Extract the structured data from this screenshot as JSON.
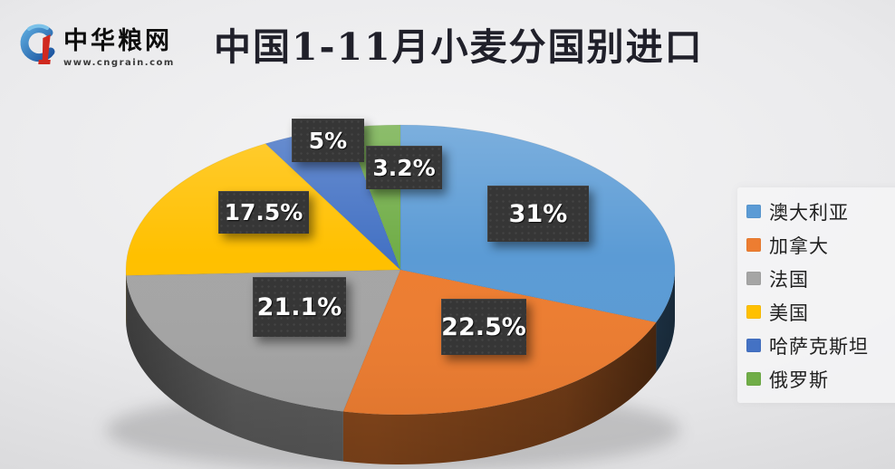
{
  "brand": {
    "name": "中华粮网",
    "url": "www.cngrain.com",
    "logo_colors": {
      "blue": "#1f5fa8",
      "light_blue": "#6fb7e4",
      "red": "#d0291f"
    }
  },
  "title": "中国1-11月小麦分国别进口",
  "chart_data": {
    "type": "pie",
    "style": "3d",
    "title": "中国1-11月小麦分国别进口",
    "unit": "%",
    "start_angle_deg": 0,
    "direction": "clockwise",
    "legend_position": "right",
    "slices": [
      {
        "name": "澳大利亚",
        "value": 31,
        "label": "31%",
        "color": "#5B9BD5"
      },
      {
        "name": "加拿大",
        "value": 22.5,
        "label": "22.5%",
        "color": "#ED7D31"
      },
      {
        "name": "法国",
        "value": 21.1,
        "label": "21.1%",
        "color": "#A5A5A5"
      },
      {
        "name": "美国",
        "value": 17.5,
        "label": "17.5%",
        "color": "#FFC000"
      },
      {
        "name": "哈萨克斯坦",
        "value": 5,
        "label": "5%",
        "color": "#4472C4"
      },
      {
        "name": "俄罗斯",
        "value": 3.2,
        "label": "3.2%",
        "color": "#70AD47"
      }
    ]
  }
}
